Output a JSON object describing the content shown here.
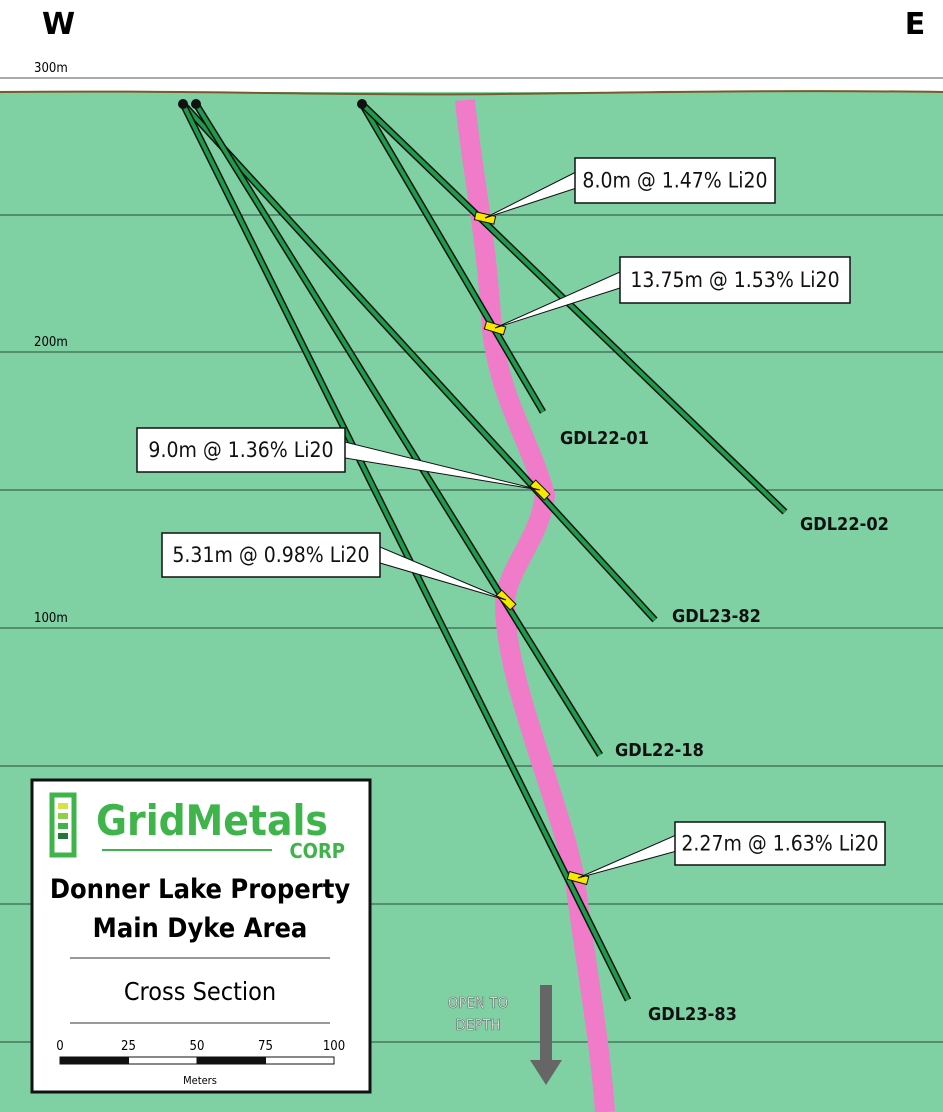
{
  "compass": {
    "west": "W",
    "east": "E"
  },
  "elevations": [
    "300m",
    "200m",
    "100m"
  ],
  "drill_holes": [
    "GDL22-01",
    "GDL22-02",
    "GDL23-82",
    "GDL22-18",
    "GDL23-83"
  ],
  "intercepts": [
    "8.0m @ 1.47% Li20",
    "13.75m @ 1.53% Li20",
    "9.0m @ 1.36% Li20",
    "5.31m @ 0.98% Li20",
    "2.27m @ 1.63% Li20"
  ],
  "annotation": [
    "OPEN TO",
    "DEPTH"
  ],
  "legend": {
    "logo": "GridMetals",
    "logo_sub": "CORP",
    "title": [
      "Donner Lake Property",
      "Main Dyke Area"
    ],
    "subtitle": "Cross Section",
    "scale_ticks": [
      "0",
      "25",
      "50",
      "75",
      "100"
    ],
    "scale_unit": "Meters"
  }
}
